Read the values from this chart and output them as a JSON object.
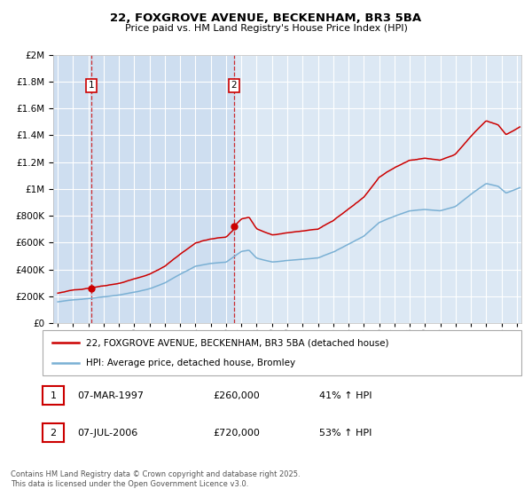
{
  "title_line1": "22, FOXGROVE AVENUE, BECKENHAM, BR3 5BA",
  "title_line2": "Price paid vs. HM Land Registry's House Price Index (HPI)",
  "bg_color": "#f0f0f0",
  "plot_bg_color": "#dce8f4",
  "grid_color": "#ffffff",
  "red_color": "#cc0000",
  "blue_color": "#7ab0d4",
  "purchase1_date": 1997.18,
  "purchase1_price": 260000,
  "purchase2_date": 2006.52,
  "purchase2_price": 720000,
  "ylim_max": 2000000,
  "legend_label_red": "22, FOXGROVE AVENUE, BECKENHAM, BR3 5BA (detached house)",
  "legend_label_blue": "HPI: Average price, detached house, Bromley",
  "note1_date": "07-MAR-1997",
  "note1_price": "£260,000",
  "note1_hpi": "41% ↑ HPI",
  "note2_date": "07-JUL-2006",
  "note2_price": "£720,000",
  "note2_hpi": "53% ↑ HPI",
  "footer": "Contains HM Land Registry data © Crown copyright and database right 2025.\nThis data is licensed under the Open Government Licence v3.0."
}
